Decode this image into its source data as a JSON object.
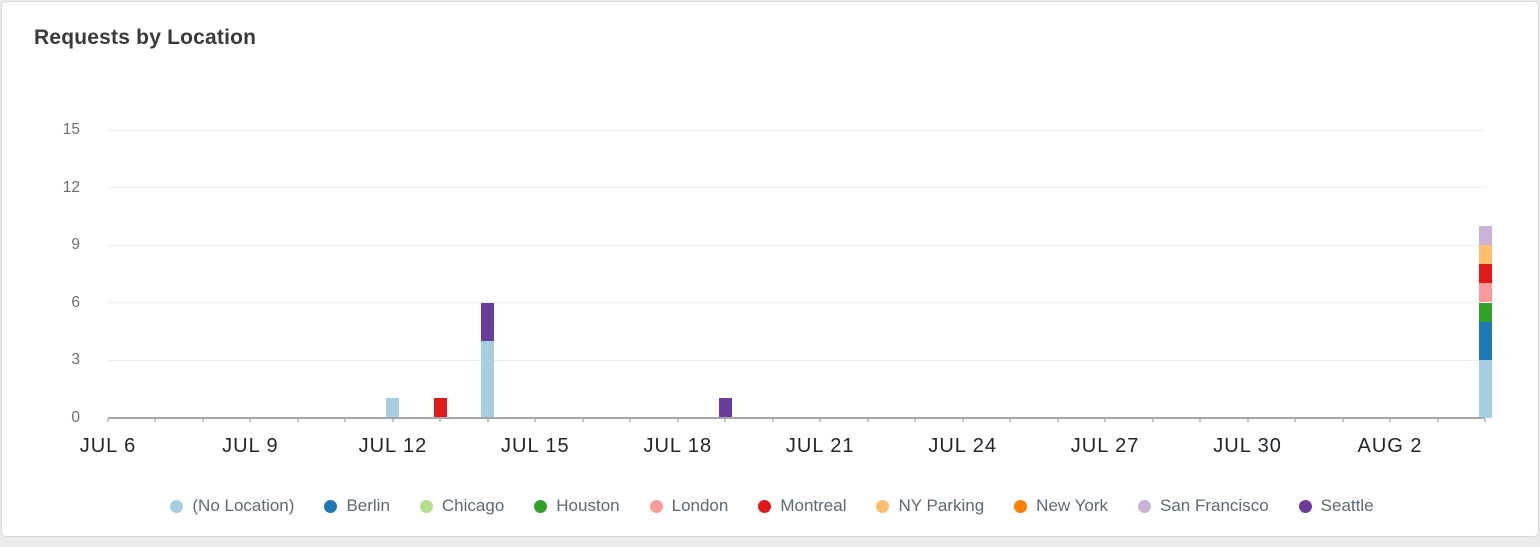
{
  "card": {
    "title": "Requests by Location"
  },
  "chart_data": {
    "type": "bar",
    "stacked": true,
    "title": "Requests by Location",
    "xlabel": "",
    "ylabel": "",
    "ylim": [
      0,
      15
    ],
    "y_ticks": [
      0,
      3,
      6,
      9,
      12,
      15
    ],
    "grid": true,
    "legend_position": "bottom",
    "x_days_total": 30,
    "x_domain": [
      "JUL 6",
      "AUG 4"
    ],
    "x_tick_labels": [
      {
        "label": "JUL 6",
        "day": 0
      },
      {
        "label": "JUL 9",
        "day": 3
      },
      {
        "label": "JUL 12",
        "day": 6
      },
      {
        "label": "JUL 15",
        "day": 9
      },
      {
        "label": "JUL 18",
        "day": 12
      },
      {
        "label": "JUL 21",
        "day": 15
      },
      {
        "label": "JUL 24",
        "day": 18
      },
      {
        "label": "JUL 27",
        "day": 21
      },
      {
        "label": "JUL 30",
        "day": 24
      },
      {
        "label": "AUG 2",
        "day": 27
      }
    ],
    "series": [
      {
        "name": "(No Location)",
        "color": "#a6cee3"
      },
      {
        "name": "Berlin",
        "color": "#1f78b4"
      },
      {
        "name": "Chicago",
        "color": "#b2df8a"
      },
      {
        "name": "Houston",
        "color": "#33a02c"
      },
      {
        "name": "London",
        "color": "#fb9a99"
      },
      {
        "name": "Montreal",
        "color": "#e31a1c"
      },
      {
        "name": "NY Parking",
        "color": "#fdbf6f"
      },
      {
        "name": "New York",
        "color": "#ff7f00"
      },
      {
        "name": "San Francisco",
        "color": "#cab2d6"
      },
      {
        "name": "Seattle",
        "color": "#6a3d9a"
      }
    ],
    "bars": [
      {
        "date": "JUL 12",
        "day": 6,
        "total": 1,
        "segments": {
          "(No Location)": 1
        }
      },
      {
        "date": "JUL 13",
        "day": 7,
        "total": 1,
        "segments": {
          "Montreal": 1
        }
      },
      {
        "date": "JUL 14",
        "day": 8,
        "total": 6,
        "segments": {
          "(No Location)": 4,
          "Seattle": 2
        }
      },
      {
        "date": "JUL 19",
        "day": 13,
        "total": 1,
        "segments": {
          "Seattle": 1
        }
      },
      {
        "date": "AUG 4",
        "day": 29,
        "total": 10,
        "segments": {
          "(No Location)": 3,
          "Berlin": 2,
          "Houston": 1,
          "London": 1,
          "Montreal": 1,
          "NY Parking": 1,
          "San Francisco": 1
        }
      }
    ],
    "colors": {
      "axis_line": "#a6a6a6",
      "gridline": "#ededed",
      "day_tick": "#c4c4c4",
      "y_label_text": "#6b7075",
      "x_label_text": "#20262c",
      "legend_text": "#5b6a75",
      "title_text": "#3a3a3a"
    }
  }
}
